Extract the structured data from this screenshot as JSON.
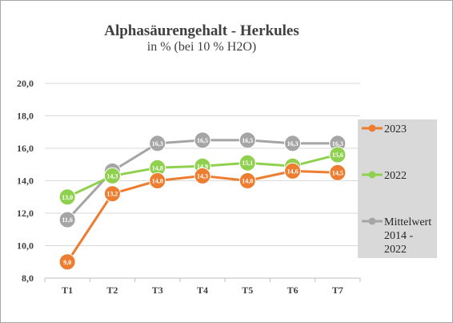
{
  "chart_data": {
    "type": "line",
    "title": "Alphasäurengehalt - Herkules",
    "subtitle": "in % (bei 10 % H2O)",
    "categories": [
      "T1",
      "T2",
      "T3",
      "T4",
      "T5",
      "T6",
      "T7"
    ],
    "ylim": [
      8.0,
      20.0
    ],
    "yticks": [
      "8,0",
      "10,0",
      "12,0",
      "14,0",
      "16,0",
      "18,0",
      "20,0"
    ],
    "grid": true,
    "legend_placement": "right",
    "series": [
      {
        "name": "Mittelwert 2014 - 2022",
        "legend_lines": [
          "Mittelwert",
          "2014 -",
          "2022"
        ],
        "color": "#a5a5a5",
        "values": [
          11.6,
          14.6,
          16.3,
          16.5,
          16.5,
          16.3,
          16.3
        ],
        "labels": [
          "11,6",
          "14,6",
          "16,3",
          "16,5",
          "16,5",
          "16,3",
          "16,3"
        ]
      },
      {
        "name": "2022",
        "legend_lines": [
          "2022"
        ],
        "color": "#8fd14f",
        "values": [
          13.0,
          14.3,
          14.8,
          14.9,
          15.1,
          14.9,
          15.6
        ],
        "labels": [
          "13,0",
          "14,3",
          "14,8",
          "14,9",
          "15,1",
          "14,9",
          "15,6"
        ]
      },
      {
        "name": "2023",
        "legend_lines": [
          "2023"
        ],
        "color": "#ed7d31",
        "values": [
          9.0,
          13.2,
          14.0,
          14.3,
          14.0,
          14.6,
          14.5
        ],
        "labels": [
          "9,0",
          "13,2",
          "14,0",
          "14,3",
          "14,0",
          "14,6",
          "14,5"
        ]
      }
    ],
    "legend_order": [
      "2023",
      "2022",
      "Mittelwert 2014 - 2022"
    ]
  }
}
